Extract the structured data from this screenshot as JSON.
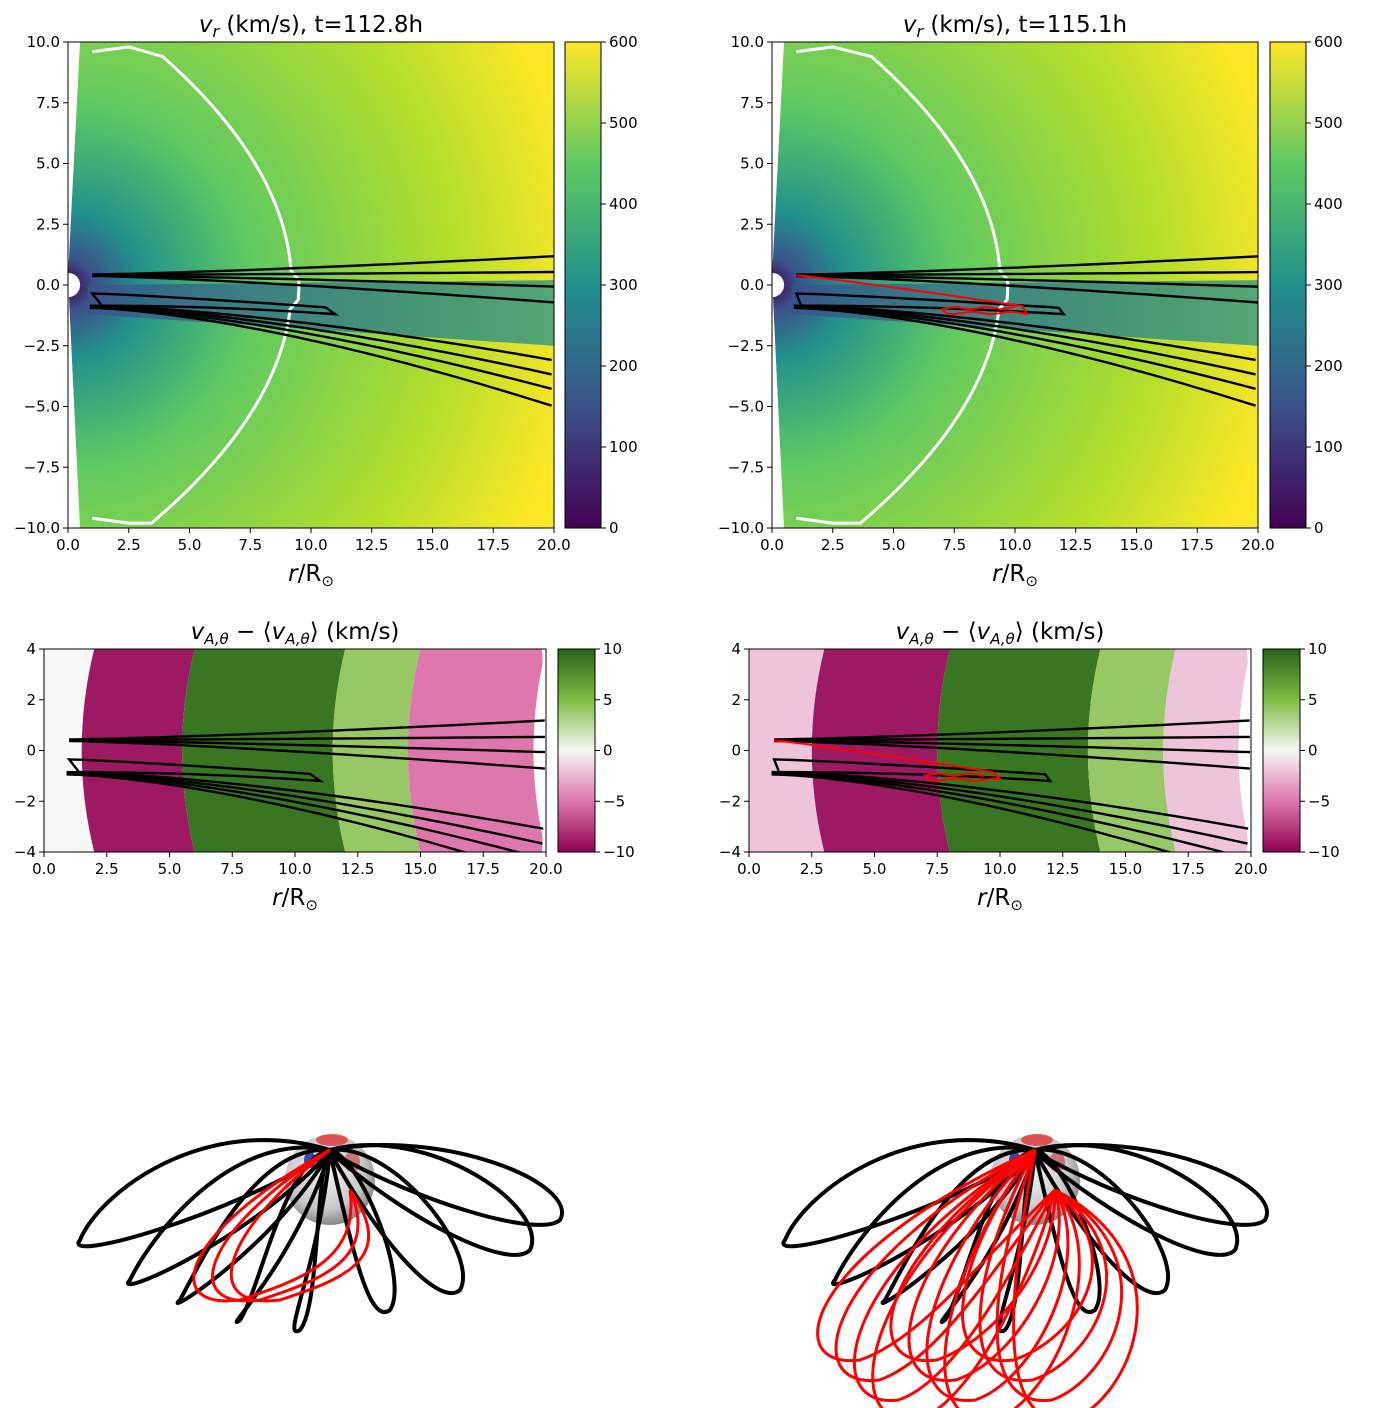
{
  "colors": {
    "black_field_lines": "#000000",
    "red_field_lines": "#ff0000",
    "sonic_contour": "#ffffff",
    "viridis": [
      "#440154",
      "#3b528b",
      "#21918c",
      "#5ec962",
      "#fde725"
    ],
    "piyg": [
      "#8e0152",
      "#de77ae",
      "#f7f7f7",
      "#7fbc41",
      "#276419"
    ]
  },
  "chart_data": [
    {
      "type": "heatmap",
      "id": "vr-112",
      "title_main": "v",
      "title_sub": "r",
      "title_rest": " (km/s), t=112.8h",
      "xlabel_main": "r",
      "xlabel_rest": "/R",
      "xlim": [
        0,
        20
      ],
      "ylim": [
        -10,
        10
      ],
      "xticks": [
        "0.0",
        "2.5",
        "5.0",
        "7.5",
        "10.0",
        "12.5",
        "15.0",
        "17.5",
        "20.0"
      ],
      "yticks": [
        "10.0",
        "7.5",
        "5.0",
        "2.5",
        "0.0",
        "−2.5",
        "−5.0",
        "−7.5",
        "−10.0"
      ],
      "colorbar": {
        "range": [
          0,
          600
        ],
        "ticks": [
          "600",
          "500",
          "400",
          "300",
          "200",
          "100",
          "0"
        ],
        "colormap": "viridis"
      },
      "current_sheet_center_y": -0.3,
      "slow_wind_region": {
        "x_end": 11,
        "y_center": -1.0
      },
      "sonic_point_r": 9.2
    },
    {
      "type": "heatmap",
      "id": "vr-115",
      "title_main": "v",
      "title_sub": "r",
      "title_rest": " (km/s), t=115.1h",
      "xlabel_main": "r",
      "xlabel_rest": "/R",
      "xlim": [
        0,
        20
      ],
      "ylim": [
        -10,
        10
      ],
      "xticks": [
        "0.0",
        "2.5",
        "5.0",
        "7.5",
        "10.0",
        "12.5",
        "15.0",
        "17.5",
        "20.0"
      ],
      "yticks": [
        "10.0",
        "7.5",
        "5.0",
        "2.5",
        "0.0",
        "−2.5",
        "−5.0",
        "−7.5",
        "−10.0"
      ],
      "colorbar": {
        "range": [
          0,
          600
        ],
        "ticks": [
          "600",
          "500",
          "400",
          "300",
          "200",
          "100",
          "0"
        ],
        "colormap": "viridis"
      },
      "current_sheet_center_y": -0.4,
      "red_loop": {
        "x_range": [
          7,
          10.5
        ],
        "y_center": -1.0
      },
      "sonic_point_r": 9.4
    },
    {
      "type": "heatmap",
      "id": "va-112",
      "title_rest": " (km/s)",
      "xlabel_main": "r",
      "xlabel_rest": "/R",
      "xlim": [
        0,
        20
      ],
      "ylim": [
        -4,
        4
      ],
      "xticks": [
        "0.0",
        "2.5",
        "5.0",
        "7.5",
        "10.0",
        "12.5",
        "15.0",
        "17.5",
        "20.0"
      ],
      "yticks": [
        "4",
        "2",
        "0",
        "−2",
        "−4"
      ],
      "colorbar": {
        "range": [
          -10,
          10
        ],
        "ticks": [
          "10",
          "5",
          "0",
          "−5",
          "−10"
        ],
        "colormap": "PiYG"
      },
      "bands": [
        {
          "x": [
            0,
            2
          ],
          "value": 0
        },
        {
          "x": [
            2,
            6
          ],
          "value": -9
        },
        {
          "x": [
            6,
            12
          ],
          "value": 9
        },
        {
          "x": [
            12,
            15
          ],
          "value": 4
        },
        {
          "x": [
            15,
            20
          ],
          "value": -5
        }
      ]
    },
    {
      "type": "heatmap",
      "id": "va-115",
      "title_rest": " (km/s)",
      "xlabel_main": "r",
      "xlabel_rest": "/R",
      "xlim": [
        0,
        20
      ],
      "ylim": [
        -4,
        4
      ],
      "xticks": [
        "0.0",
        "2.5",
        "5.0",
        "7.5",
        "10.0",
        "12.5",
        "15.0",
        "17.5",
        "20.0"
      ],
      "yticks": [
        "4",
        "2",
        "0",
        "−2",
        "−4"
      ],
      "colorbar": {
        "range": [
          -10,
          10
        ],
        "ticks": [
          "10",
          "5",
          "0",
          "−5",
          "−10"
        ],
        "colormap": "PiYG"
      },
      "bands": [
        {
          "x": [
            0,
            3
          ],
          "value": -2
        },
        {
          "x": [
            3,
            8
          ],
          "value": -9
        },
        {
          "x": [
            8,
            14
          ],
          "value": 9
        },
        {
          "x": [
            14,
            17
          ],
          "value": 4
        },
        {
          "x": [
            17,
            20
          ],
          "value": -2
        }
      ]
    }
  ],
  "renders": [
    {
      "id": "render-112",
      "red_loop_count": 3
    },
    {
      "id": "render-115",
      "red_loop_count": 12
    }
  ]
}
